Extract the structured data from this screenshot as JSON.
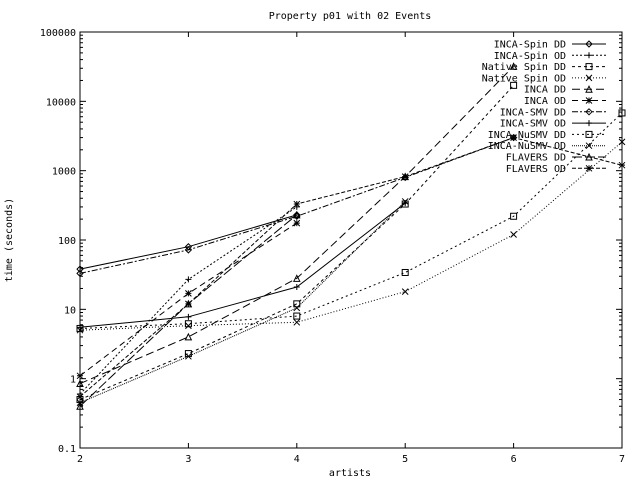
{
  "chart_data": {
    "type": "line",
    "title": "Property p01 with 02 Events",
    "xlabel": "artists",
    "ylabel": "time (seconds)",
    "xlim": [
      2,
      7
    ],
    "ylim": [
      0.1,
      100000
    ],
    "yscale": "log",
    "grid": false,
    "legend_position": "top-right",
    "x_ticks": [
      2,
      3,
      4,
      5,
      6,
      7
    ],
    "x_tick_labels": [
      "2",
      "3",
      "4",
      "5",
      "6",
      "7"
    ],
    "y_ticks": [
      0.1,
      1,
      10,
      100,
      1000,
      10000,
      100000
    ],
    "y_tick_labels": [
      "0.1",
      "1",
      "10",
      "100",
      "1000",
      "10000",
      "100000"
    ],
    "series": [
      {
        "name": "INCA-Spin DD",
        "dash": "none",
        "marker": "diamond",
        "x": [
          2,
          3,
          4
        ],
        "y": [
          38,
          80,
          230
        ]
      },
      {
        "name": "INCA-Spin OD",
        "dash": "2,2",
        "marker": "plus",
        "x": [
          2,
          3,
          4
        ],
        "y": [
          0.6,
          27,
          300
        ]
      },
      {
        "name": "Native Spin DD",
        "dash": "3,3",
        "marker": "square",
        "x": [
          2,
          3,
          4,
          5,
          6
        ],
        "y": [
          0.5,
          2.3,
          12,
          330,
          17000
        ]
      },
      {
        "name": "Native Spin OD",
        "dash": "1,2",
        "marker": "x",
        "x": [
          2,
          3,
          4,
          5,
          6,
          7
        ],
        "y": [
          5.0,
          5.8,
          6.5,
          18,
          120,
          2600
        ]
      },
      {
        "name": "INCA DD",
        "dash": "8,4",
        "marker": "triangle",
        "x": [
          2,
          3,
          4,
          5,
          6
        ],
        "y": [
          0.85,
          4.0,
          28,
          820,
          32000
        ]
      },
      {
        "name": "INCA OD",
        "dash": "6,4",
        "marker": "star",
        "x": [
          2,
          3,
          4
        ],
        "y": [
          1.1,
          17,
          175
        ]
      },
      {
        "name": "INCA-SMV DD",
        "dash": "6,2,2,2",
        "marker": "diamond",
        "x": [
          2,
          3,
          4,
          5,
          6
        ],
        "y": [
          33,
          72,
          220,
          800,
          3000
        ]
      },
      {
        "name": "INCA-SMV OD",
        "dash": "none",
        "marker": "plus",
        "x": [
          2,
          3,
          4,
          5
        ],
        "y": [
          5.5,
          7.8,
          21,
          340
        ]
      },
      {
        "name": "INCA-NuSMV DD",
        "dash": "2,3",
        "marker": "square",
        "x": [
          2,
          3,
          4,
          5,
          6,
          7
        ],
        "y": [
          5.3,
          6.2,
          8.0,
          34,
          220,
          6800
        ]
      },
      {
        "name": "INCA-NuSMV OD",
        "dash": "1,1",
        "marker": "x",
        "x": [
          2,
          3,
          4,
          5
        ],
        "y": [
          0.45,
          2.1,
          10.5,
          360
        ]
      },
      {
        "name": "FLAVERS DD",
        "dash": "10,3",
        "marker": "triangle",
        "x": [
          2,
          3,
          4
        ],
        "y": [
          0.4,
          12,
          230
        ]
      },
      {
        "name": "FLAVERS OD",
        "dash": "4,2",
        "marker": "star",
        "x": [
          2,
          3,
          4,
          5,
          6,
          7
        ],
        "y": [
          0.55,
          12,
          330,
          820,
          3000,
          1200
        ]
      }
    ]
  }
}
